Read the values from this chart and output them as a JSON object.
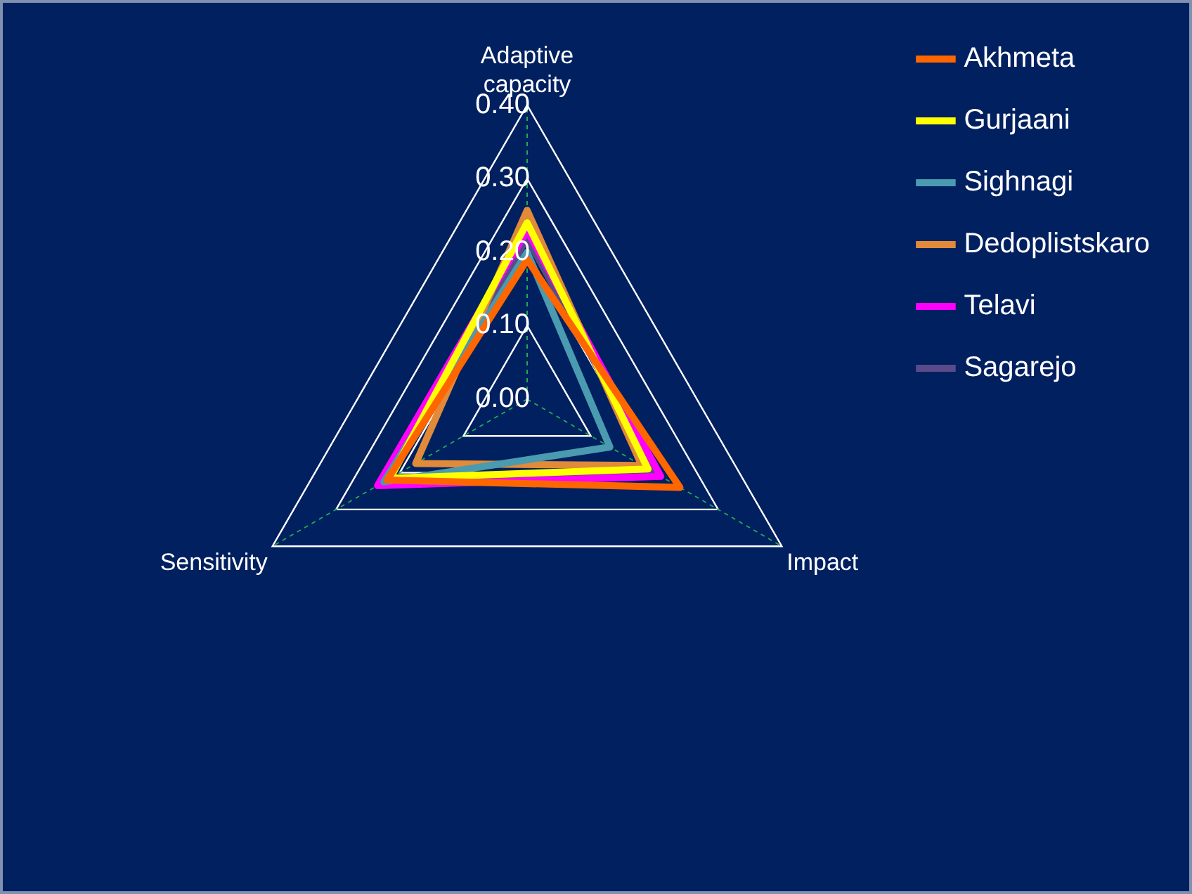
{
  "chart_data": {
    "type": "radar",
    "categories": [
      "Adaptive capacity",
      "Impact",
      "Sensitivity"
    ],
    "ylim": [
      0,
      0.4
    ],
    "yticks": [
      {
        "value": 0,
        "label": "0.00"
      },
      {
        "value": 0.1,
        "label": "0.10"
      },
      {
        "value": 0.2,
        "label": "0.20"
      },
      {
        "value": 0.3,
        "label": "0.30"
      },
      {
        "value": 0.4,
        "label": "0.40"
      }
    ],
    "grid": true,
    "legend": "right",
    "marker": "none",
    "series": [
      {
        "name": "Akhmeta",
        "color": "#ff6600",
        "values": [
          0.19,
          0.24,
          0.22
        ]
      },
      {
        "name": "Gurjaani",
        "color": "#ffff00",
        "values": [
          0.24,
          0.19,
          0.215
        ]
      },
      {
        "name": "Sighnagi",
        "color": "#4a9ab0",
        "values": [
          0.2,
          0.13,
          0.225
        ]
      },
      {
        "name": "Dedoplistskaro",
        "color": "#e08a3a",
        "values": [
          0.257,
          0.18,
          0.175
        ]
      },
      {
        "name": "Telavi",
        "color": "#ff00ff",
        "values": [
          0.23,
          0.21,
          0.235
        ]
      },
      {
        "name": "Sagarejo",
        "color": "#5b4a8a",
        "values": [
          0.22,
          0.2,
          0.22
        ]
      }
    ]
  }
}
